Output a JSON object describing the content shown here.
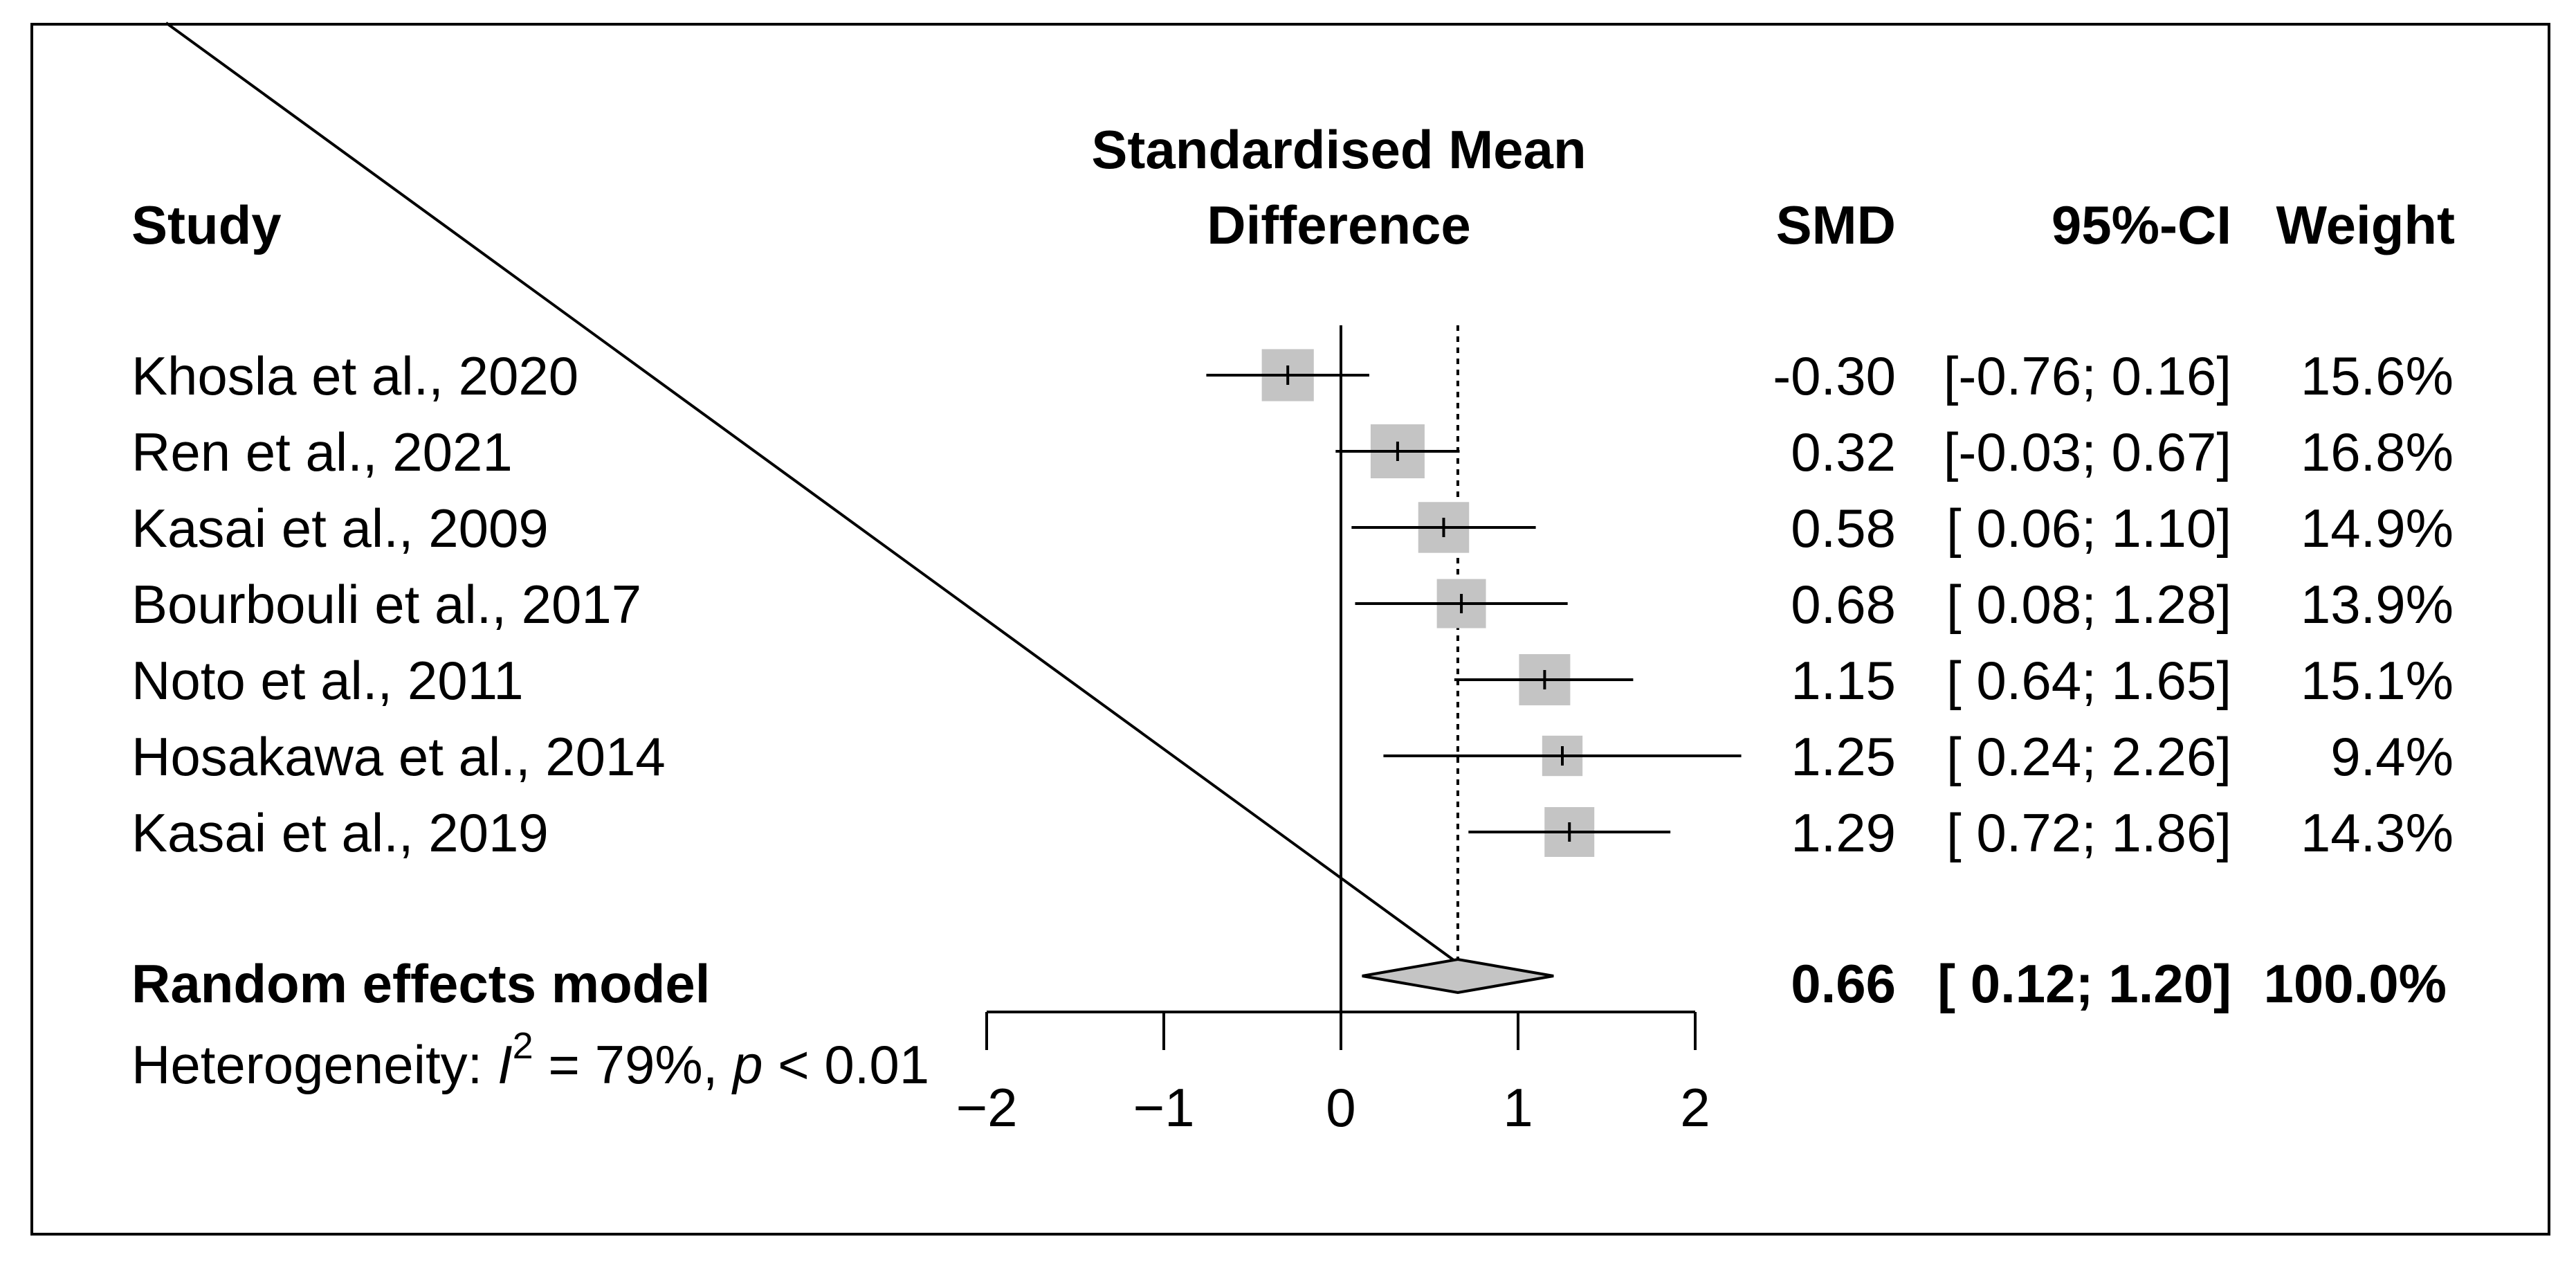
{
  "chart_data": {
    "type": "forest",
    "headers": {
      "study": "Study",
      "effect_line1": "Standardised Mean",
      "effect_line2": "Difference",
      "smd": "SMD",
      "ci": "95%-CI",
      "weight": "Weight"
    },
    "studies": [
      {
        "label": "Khosla et al., 2020",
        "smd": -0.3,
        "lower": -0.76,
        "upper": 0.16,
        "smd_text": "-0.30",
        "ci_text": "[-0.76; 0.16]",
        "weight": 15.6,
        "weight_text": "15.6%"
      },
      {
        "label": "Ren et al., 2021",
        "smd": 0.32,
        "lower": -0.03,
        "upper": 0.67,
        "smd_text": "0.32",
        "ci_text": "[-0.03; 0.67]",
        "weight": 16.8,
        "weight_text": "16.8%"
      },
      {
        "label": "Kasai et al., 2009",
        "smd": 0.58,
        "lower": 0.06,
        "upper": 1.1,
        "smd_text": "0.58",
        "ci_text": "[ 0.06; 1.10]",
        "weight": 14.9,
        "weight_text": "14.9%"
      },
      {
        "label": "Bourbouli et al., 2017",
        "smd": 0.68,
        "lower": 0.08,
        "upper": 1.28,
        "smd_text": "0.68",
        "ci_text": "[ 0.08; 1.28]",
        "weight": 13.9,
        "weight_text": "13.9%"
      },
      {
        "label": "Noto et al., 2011",
        "smd": 1.15,
        "lower": 0.64,
        "upper": 1.65,
        "smd_text": "1.15",
        "ci_text": "[ 0.64; 1.65]",
        "weight": 15.1,
        "weight_text": "15.1%"
      },
      {
        "label": "Hosakawa et al., 2014",
        "smd": 1.25,
        "lower": 0.24,
        "upper": 2.26,
        "smd_text": "1.25",
        "ci_text": "[ 0.24; 2.26]",
        "weight": 9.4,
        "weight_text": "9.4%"
      },
      {
        "label": "Kasai et al., 2019",
        "smd": 1.29,
        "lower": 0.72,
        "upper": 1.86,
        "smd_text": "1.29",
        "ci_text": "[ 0.72; 1.86]",
        "weight": 14.3,
        "weight_text": "14.3%"
      }
    ],
    "summary": {
      "label": "Random effects model",
      "smd": 0.66,
      "lower": 0.12,
      "upper": 1.2,
      "smd_text": "0.66",
      "ci_text": "[ 0.12; 1.20]",
      "weight_text": "100.0%"
    },
    "heterogeneity": {
      "prefix": "Heterogeneity: ",
      "symbol": "I",
      "superscript": "2",
      "value_text": " = 79%, ",
      "p_symbol": "p",
      "p_text": " < 0.01"
    },
    "x_axis": {
      "ticks": [
        -2,
        -1,
        0,
        1,
        2
      ],
      "tick_labels": [
        "−2",
        "−1",
        "0",
        "1",
        "2"
      ],
      "xlim": [
        -2,
        2
      ]
    },
    "colors": {
      "box_fill": "#c4c4c4",
      "diamond_fill": "#c4c4c4",
      "line": "#000000"
    }
  }
}
